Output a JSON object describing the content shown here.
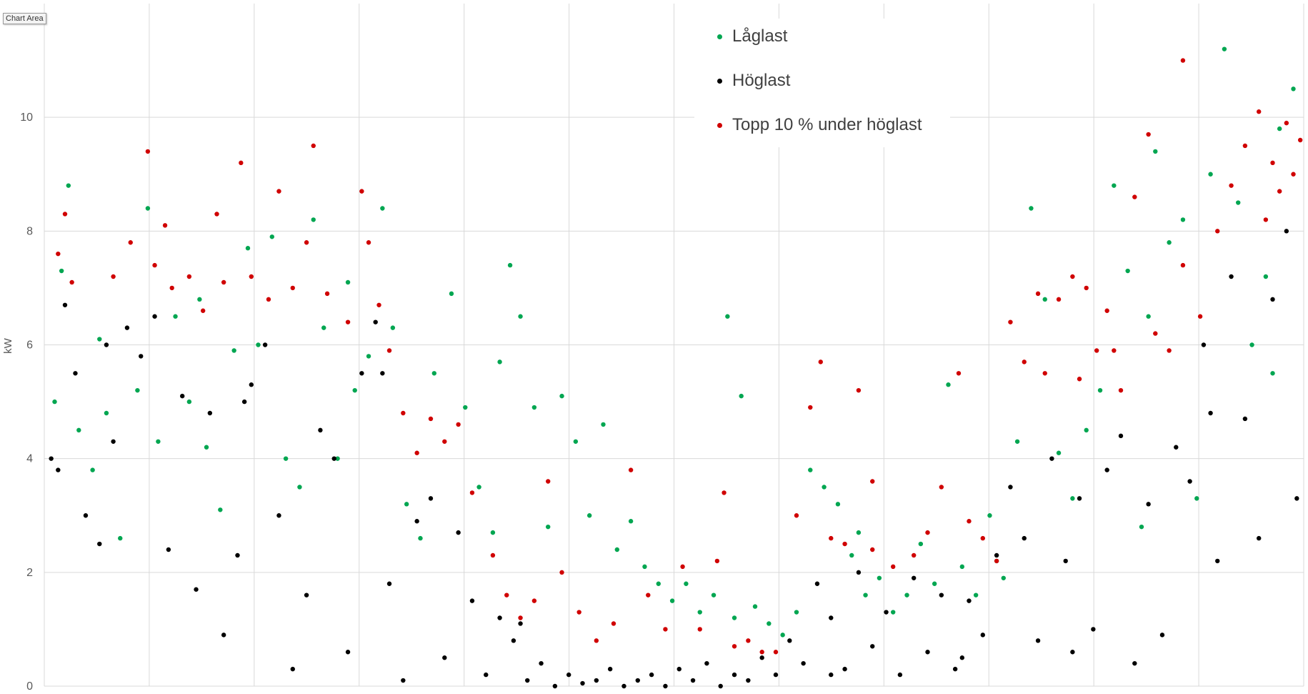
{
  "tooltip": "Chart Area",
  "colors": {
    "low": "#00a651",
    "high": "#000000",
    "top": "#d00000",
    "grid": "#d9d9d9",
    "axis_text": "#595959"
  },
  "legend": {
    "items": [
      {
        "label": "Låglast",
        "color": "#00a651"
      },
      {
        "label": "Höglast",
        "color": "#000000"
      },
      {
        "label": "Topp 10 % under höglast",
        "color": "#d00000"
      }
    ]
  },
  "chart_data": {
    "type": "scatter",
    "title": "",
    "xlabel": "",
    "ylabel": "kW",
    "ylim": [
      0,
      12
    ],
    "xlim": [
      0,
      365
    ],
    "yticks": [
      0,
      2,
      4,
      6,
      8,
      10
    ],
    "xgrid_count": 12,
    "grid": true,
    "legend_position": "top-center",
    "series": [
      {
        "name": "Låglast",
        "color": "#00a651",
        "points": [
          [
            3,
            5.0
          ],
          [
            5,
            7.3
          ],
          [
            7,
            8.8
          ],
          [
            10,
            4.5
          ],
          [
            14,
            3.8
          ],
          [
            18,
            4.8
          ],
          [
            22,
            2.6
          ],
          [
            27,
            5.2
          ],
          [
            30,
            8.4
          ],
          [
            33,
            4.3
          ],
          [
            38,
            6.5
          ],
          [
            42,
            5.0
          ],
          [
            47,
            4.2
          ],
          [
            51,
            3.1
          ],
          [
            55,
            5.9
          ],
          [
            59,
            7.7
          ],
          [
            62,
            6.0
          ],
          [
            66,
            7.9
          ],
          [
            70,
            4.0
          ],
          [
            74,
            3.5
          ],
          [
            78,
            8.2
          ],
          [
            81,
            6.3
          ],
          [
            85,
            4.0
          ],
          [
            90,
            5.2
          ],
          [
            94,
            5.8
          ],
          [
            98,
            8.4
          ],
          [
            101,
            6.3
          ],
          [
            105,
            3.2
          ],
          [
            109,
            2.6
          ],
          [
            113,
            5.5
          ],
          [
            118,
            6.9
          ],
          [
            122,
            4.9
          ],
          [
            126,
            3.5
          ],
          [
            130,
            2.7
          ],
          [
            135,
            7.4
          ],
          [
            138,
            6.5
          ],
          [
            142,
            4.9
          ],
          [
            146,
            2.8
          ],
          [
            150,
            5.1
          ],
          [
            154,
            4.3
          ],
          [
            158,
            3.0
          ],
          [
            162,
            4.6
          ],
          [
            166,
            2.4
          ],
          [
            170,
            2.9
          ],
          [
            174,
            2.1
          ],
          [
            178,
            1.8
          ],
          [
            182,
            1.5
          ],
          [
            186,
            1.8
          ],
          [
            190,
            1.3
          ],
          [
            194,
            1.6
          ],
          [
            198,
            6.5
          ],
          [
            202,
            5.1
          ],
          [
            206,
            1.4
          ],
          [
            210,
            1.1
          ],
          [
            214,
            0.9
          ],
          [
            218,
            1.3
          ],
          [
            222,
            3.8
          ],
          [
            226,
            3.5
          ],
          [
            230,
            3.2
          ],
          [
            234,
            2.3
          ],
          [
            238,
            1.6
          ],
          [
            242,
            1.9
          ],
          [
            246,
            1.3
          ],
          [
            250,
            1.6
          ],
          [
            254,
            2.5
          ],
          [
            258,
            1.8
          ],
          [
            262,
            5.3
          ],
          [
            266,
            2.1
          ],
          [
            270,
            1.6
          ],
          [
            274,
            3.0
          ],
          [
            278,
            1.9
          ],
          [
            282,
            4.3
          ],
          [
            286,
            8.4
          ],
          [
            290,
            6.8
          ],
          [
            294,
            4.1
          ],
          [
            298,
            3.3
          ],
          [
            302,
            4.5
          ],
          [
            306,
            5.2
          ],
          [
            310,
            8.8
          ],
          [
            314,
            7.3
          ],
          [
            318,
            2.8
          ],
          [
            322,
            9.4
          ],
          [
            326,
            7.8
          ],
          [
            330,
            8.2
          ],
          [
            334,
            3.3
          ],
          [
            338,
            9.0
          ],
          [
            342,
            11.2
          ],
          [
            346,
            8.5
          ],
          [
            350,
            6.0
          ],
          [
            354,
            7.2
          ],
          [
            358,
            9.8
          ],
          [
            362,
            10.5
          ],
          [
            16,
            6.1
          ],
          [
            45,
            6.8
          ],
          [
            88,
            7.1
          ],
          [
            132,
            5.7
          ],
          [
            200,
            1.2
          ],
          [
            236,
            2.7
          ],
          [
            276,
            2.2
          ],
          [
            320,
            6.5
          ],
          [
            356,
            5.5
          ]
        ]
      },
      {
        "name": "Höglast",
        "color": "#000000",
        "points": [
          [
            2,
            4.0
          ],
          [
            4,
            3.8
          ],
          [
            6,
            6.7
          ],
          [
            9,
            5.5
          ],
          [
            12,
            3.0
          ],
          [
            16,
            2.5
          ],
          [
            20,
            4.3
          ],
          [
            24,
            6.3
          ],
          [
            28,
            5.8
          ],
          [
            32,
            6.5
          ],
          [
            36,
            2.4
          ],
          [
            40,
            5.1
          ],
          [
            44,
            1.7
          ],
          [
            48,
            4.8
          ],
          [
            52,
            0.9
          ],
          [
            56,
            2.3
          ],
          [
            60,
            5.3
          ],
          [
            64,
            6.0
          ],
          [
            68,
            3.0
          ],
          [
            72,
            0.3
          ],
          [
            76,
            1.6
          ],
          [
            80,
            4.5
          ],
          [
            84,
            4.0
          ],
          [
            88,
            0.6
          ],
          [
            92,
            5.5
          ],
          [
            96,
            6.4
          ],
          [
            100,
            1.8
          ],
          [
            104,
            0.1
          ],
          [
            108,
            2.9
          ],
          [
            112,
            3.3
          ],
          [
            116,
            0.5
          ],
          [
            120,
            2.7
          ],
          [
            124,
            1.5
          ],
          [
            128,
            0.2
          ],
          [
            132,
            1.2
          ],
          [
            136,
            0.8
          ],
          [
            140,
            0.1
          ],
          [
            144,
            0.4
          ],
          [
            148,
            0.0
          ],
          [
            152,
            0.2
          ],
          [
            156,
            0.05
          ],
          [
            160,
            0.1
          ],
          [
            164,
            0.3
          ],
          [
            168,
            0.0
          ],
          [
            172,
            0.1
          ],
          [
            176,
            0.2
          ],
          [
            180,
            0.0
          ],
          [
            184,
            0.3
          ],
          [
            188,
            0.1
          ],
          [
            192,
            0.4
          ],
          [
            196,
            0.0
          ],
          [
            200,
            0.2
          ],
          [
            204,
            0.1
          ],
          [
            208,
            0.5
          ],
          [
            212,
            0.2
          ],
          [
            216,
            0.8
          ],
          [
            220,
            0.4
          ],
          [
            224,
            1.8
          ],
          [
            228,
            1.2
          ],
          [
            232,
            0.3
          ],
          [
            236,
            2.0
          ],
          [
            240,
            0.7
          ],
          [
            244,
            1.3
          ],
          [
            248,
            0.2
          ],
          [
            252,
            1.9
          ],
          [
            256,
            0.6
          ],
          [
            260,
            1.6
          ],
          [
            264,
            0.3
          ],
          [
            268,
            1.5
          ],
          [
            272,
            0.9
          ],
          [
            276,
            2.3
          ],
          [
            280,
            3.5
          ],
          [
            284,
            2.6
          ],
          [
            288,
            0.8
          ],
          [
            292,
            4.0
          ],
          [
            296,
            2.2
          ],
          [
            300,
            3.3
          ],
          [
            304,
            1.0
          ],
          [
            308,
            3.8
          ],
          [
            312,
            4.4
          ],
          [
            316,
            0.4
          ],
          [
            320,
            3.2
          ],
          [
            324,
            0.9
          ],
          [
            328,
            4.2
          ],
          [
            332,
            3.6
          ],
          [
            336,
            6.0
          ],
          [
            340,
            2.2
          ],
          [
            344,
            7.2
          ],
          [
            348,
            4.7
          ],
          [
            352,
            2.6
          ],
          [
            356,
            6.8
          ],
          [
            360,
            8.0
          ],
          [
            363,
            3.3
          ],
          [
            18,
            6.0
          ],
          [
            58,
            5.0
          ],
          [
            98,
            5.5
          ],
          [
            138,
            1.1
          ],
          [
            228,
            0.2
          ],
          [
            266,
            0.5
          ],
          [
            298,
            0.6
          ],
          [
            338,
            4.8
          ]
        ]
      },
      {
        "name": "Topp 10 % under höglast",
        "color": "#d00000",
        "points": [
          [
            4,
            7.6
          ],
          [
            6,
            8.3
          ],
          [
            8,
            7.1
          ],
          [
            20,
            7.2
          ],
          [
            25,
            7.8
          ],
          [
            30,
            9.4
          ],
          [
            32,
            7.4
          ],
          [
            35,
            8.1
          ],
          [
            37,
            7.0
          ],
          [
            42,
            7.2
          ],
          [
            46,
            6.6
          ],
          [
            50,
            8.3
          ],
          [
            52,
            7.1
          ],
          [
            57,
            9.2
          ],
          [
            60,
            7.2
          ],
          [
            65,
            6.8
          ],
          [
            68,
            8.7
          ],
          [
            72,
            7.0
          ],
          [
            76,
            7.8
          ],
          [
            78,
            9.5
          ],
          [
            82,
            6.9
          ],
          [
            88,
            6.4
          ],
          [
            92,
            8.7
          ],
          [
            94,
            7.8
          ],
          [
            97,
            6.7
          ],
          [
            100,
            5.9
          ],
          [
            104,
            4.8
          ],
          [
            108,
            4.1
          ],
          [
            112,
            4.7
          ],
          [
            116,
            4.3
          ],
          [
            120,
            4.6
          ],
          [
            124,
            3.4
          ],
          [
            130,
            2.3
          ],
          [
            134,
            1.6
          ],
          [
            138,
            1.2
          ],
          [
            142,
            1.5
          ],
          [
            146,
            3.6
          ],
          [
            150,
            2.0
          ],
          [
            155,
            1.3
          ],
          [
            160,
            0.8
          ],
          [
            165,
            1.1
          ],
          [
            170,
            3.8
          ],
          [
            175,
            1.6
          ],
          [
            180,
            1.0
          ],
          [
            185,
            2.1
          ],
          [
            190,
            1.0
          ],
          [
            195,
            2.2
          ],
          [
            197,
            3.4
          ],
          [
            200,
            0.7
          ],
          [
            204,
            0.8
          ],
          [
            208,
            0.6
          ],
          [
            212,
            0.6
          ],
          [
            218,
            3.0
          ],
          [
            222,
            4.9
          ],
          [
            225,
            5.7
          ],
          [
            228,
            2.6
          ],
          [
            232,
            2.5
          ],
          [
            236,
            5.2
          ],
          [
            240,
            2.4
          ],
          [
            246,
            2.1
          ],
          [
            252,
            2.3
          ],
          [
            256,
            2.7
          ],
          [
            260,
            3.5
          ],
          [
            265,
            5.5
          ],
          [
            268,
            2.9
          ],
          [
            272,
            2.6
          ],
          [
            276,
            2.2
          ],
          [
            280,
            6.4
          ],
          [
            284,
            5.7
          ],
          [
            288,
            6.9
          ],
          [
            290,
            5.5
          ],
          [
            294,
            6.8
          ],
          [
            298,
            7.2
          ],
          [
            302,
            7.0
          ],
          [
            305,
            5.9
          ],
          [
            308,
            6.6
          ],
          [
            312,
            5.2
          ],
          [
            316,
            8.6
          ],
          [
            320,
            9.7
          ],
          [
            322,
            6.2
          ],
          [
            326,
            5.9
          ],
          [
            330,
            7.4
          ],
          [
            335,
            6.5
          ],
          [
            340,
            8.0
          ],
          [
            344,
            8.8
          ],
          [
            348,
            9.5
          ],
          [
            352,
            10.1
          ],
          [
            354,
            8.2
          ],
          [
            356,
            9.2
          ],
          [
            358,
            8.7
          ],
          [
            360,
            9.9
          ],
          [
            362,
            9.0
          ],
          [
            364,
            9.6
          ],
          [
            330,
            11.0
          ],
          [
            300,
            5.4
          ],
          [
            310,
            5.9
          ],
          [
            240,
            3.6
          ]
        ]
      }
    ]
  }
}
